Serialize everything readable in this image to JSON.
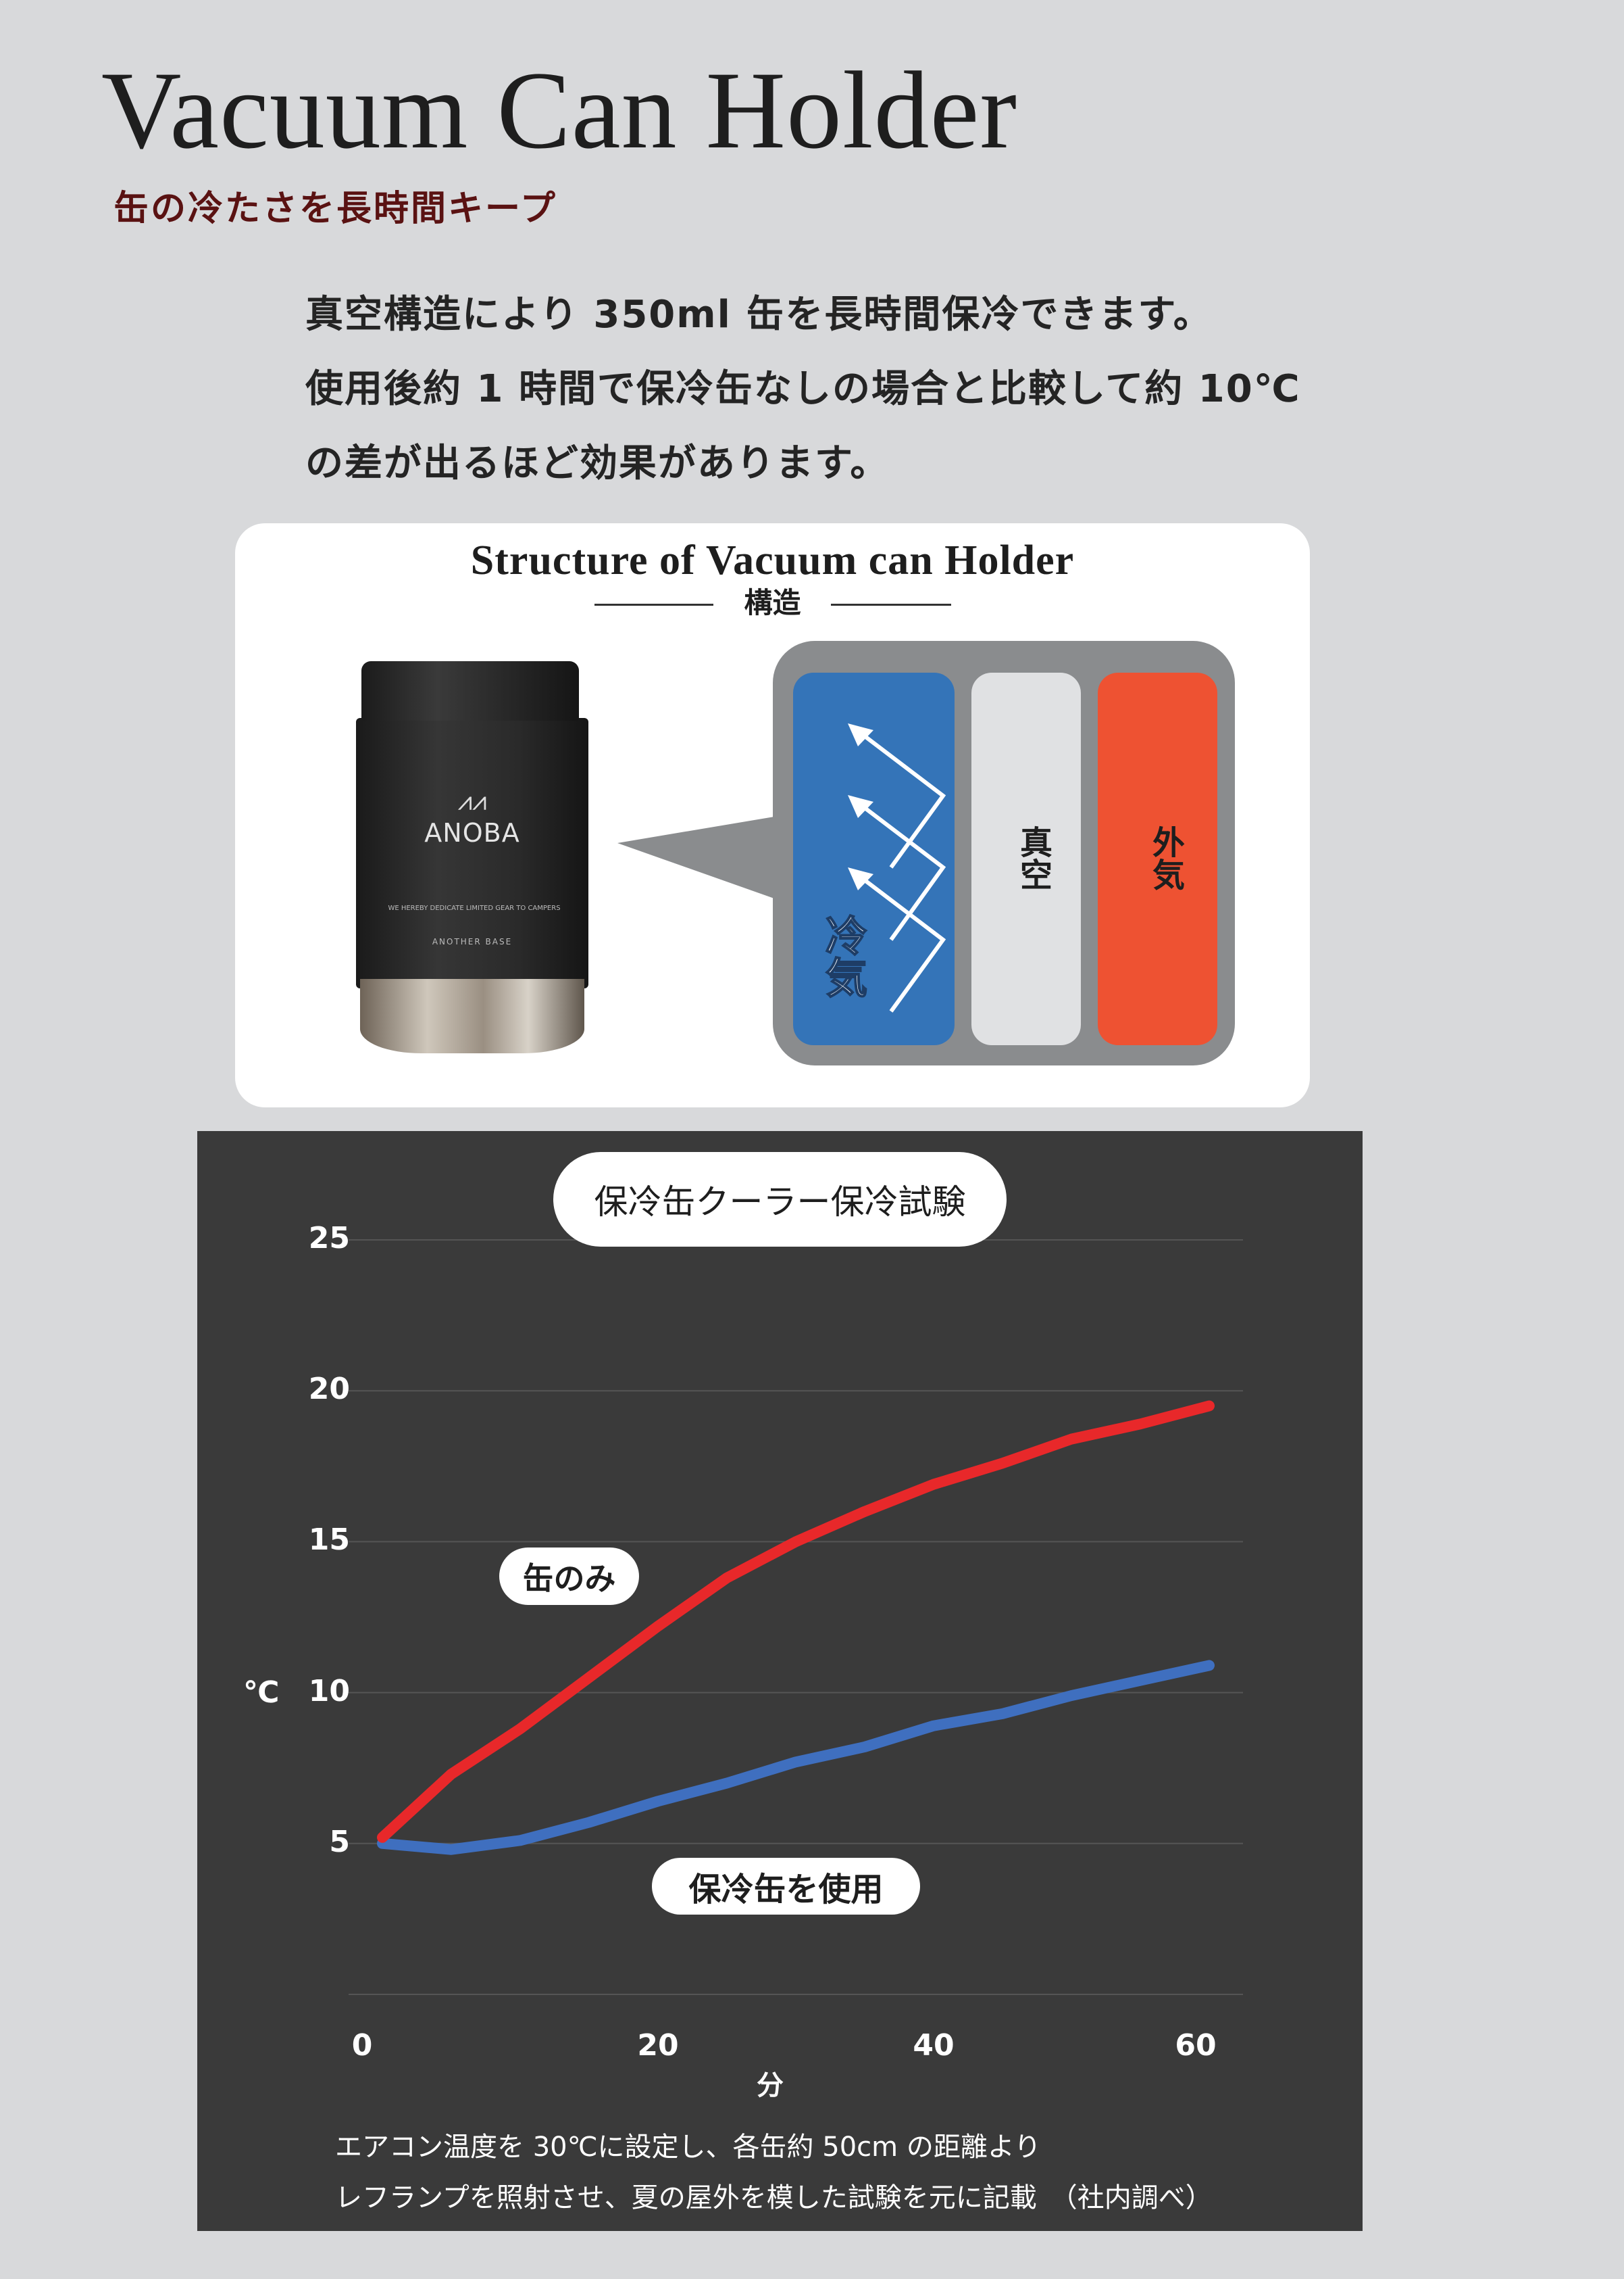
{
  "header": {
    "title": "Vacuum Can Holder",
    "subtitle": "缶の冷たさを長時間キープ"
  },
  "description": {
    "lines": [
      "真空構造により 350ml 缶を長時間保冷できます。",
      "使用後約 1 時間で保冷缶なしの場合と比較して約 10℃",
      "の差が出るほど効果があります。"
    ]
  },
  "structure": {
    "title": "Structure of Vacuum can Holder",
    "subtitle": "構造",
    "product_logo": "ANOBA",
    "product_tagline": "WE HEREBY DEDICATE LIMITED GEAR TO CAMPERS",
    "product_tagline2": "ANOTHER BASE",
    "layers": {
      "inner": "冷気",
      "middle": "真空",
      "outer": "外気"
    },
    "colors": {
      "inner": "#3474b8",
      "middle": "#e0e1e3",
      "outer": "#ee5232",
      "shell": "#8a8c8e"
    }
  },
  "chart_data": {
    "type": "line",
    "title": "保冷缶クーラー保冷試験",
    "xlabel": "分",
    "ylabel": "℃",
    "xlim": [
      0,
      60
    ],
    "ylim": [
      0,
      25
    ],
    "xticks": [
      0,
      20,
      40,
      60
    ],
    "yticks": [
      5,
      10,
      15,
      20,
      25
    ],
    "grid": true,
    "x": [
      0,
      5,
      10,
      15,
      20,
      25,
      30,
      35,
      40,
      45,
      50,
      55,
      60
    ],
    "series": [
      {
        "name": "缶のみ",
        "color": "#e8282a",
        "values": [
          5.2,
          7.3,
          8.8,
          10.5,
          12.2,
          13.8,
          15.0,
          16.0,
          16.9,
          17.6,
          18.4,
          18.9,
          19.5
        ]
      },
      {
        "name": "保冷缶を使用",
        "color": "#3f6fbf",
        "values": [
          5.0,
          4.8,
          5.1,
          5.7,
          6.4,
          7.0,
          7.7,
          8.2,
          8.9,
          9.3,
          9.9,
          10.4,
          10.9
        ]
      }
    ],
    "footnote": [
      "エアコン温度を 30℃に設定し、各缶約 50cm の距離より",
      "レフランプを照射させ、夏の屋外を模した試験を元に記載　（社内調べ）"
    ]
  }
}
